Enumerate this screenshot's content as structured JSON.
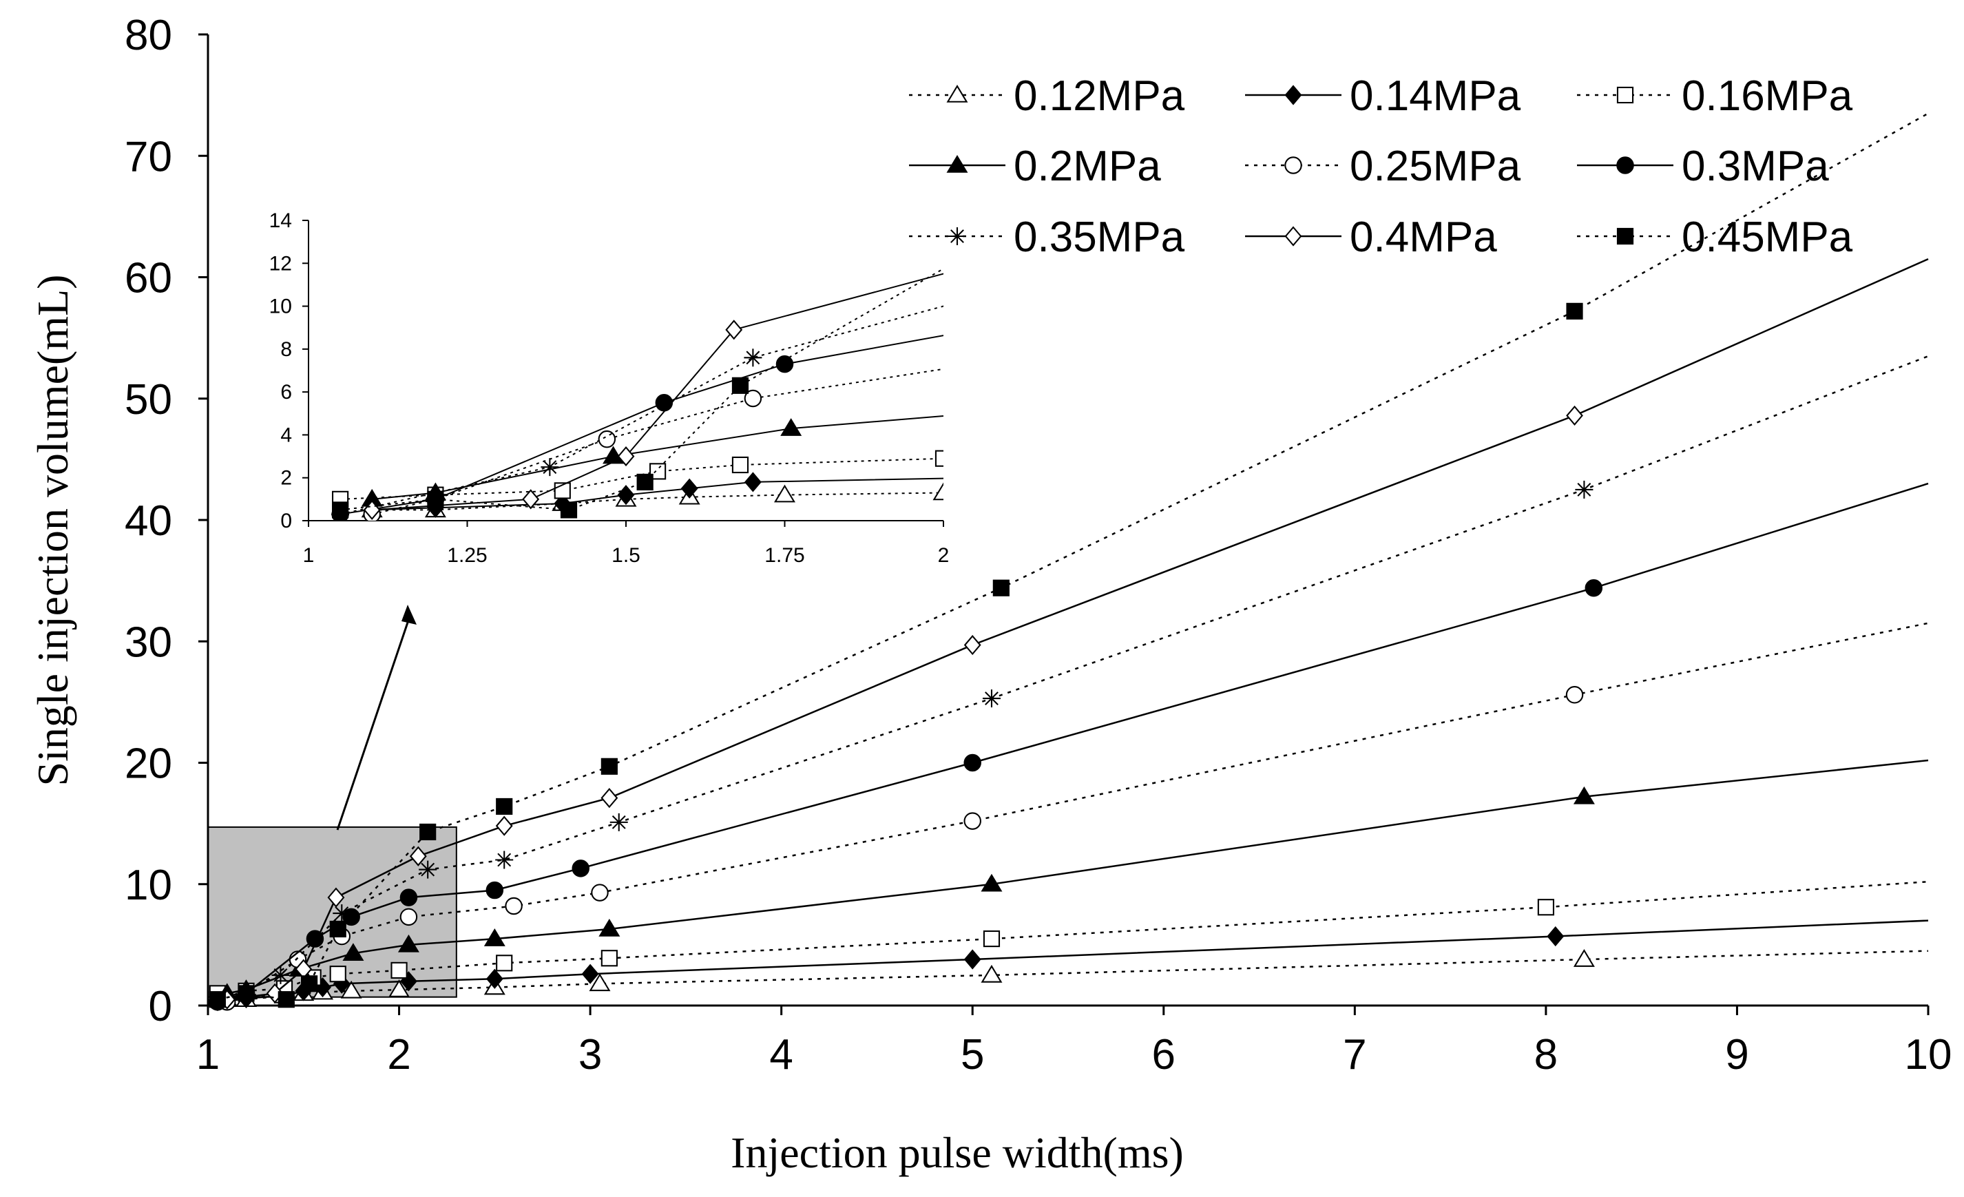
{
  "chart_data": {
    "type": "line",
    "xlabel": "Injection pulse width(ms)",
    "ylabel": "Single injection volume(mL)",
    "xlim": [
      1,
      10
    ],
    "ylim": [
      0,
      80
    ],
    "xticks": [
      "1",
      "2",
      "3",
      "4",
      "5",
      "6",
      "7",
      "8",
      "9",
      "10"
    ],
    "yticks": [
      "0",
      "10",
      "20",
      "30",
      "40",
      "50",
      "60",
      "70",
      "80"
    ],
    "grid": false,
    "legend_position": "top-right",
    "series": [
      {
        "name": "0.12MPa",
        "marker": "triangle-open",
        "line": "dotted",
        "x": [
          1.1,
          1.2,
          1.4,
          1.5,
          1.6,
          1.75,
          2.0,
          2.5,
          3.05,
          5.1,
          8.2,
          10
        ],
        "y": [
          0.5,
          0.5,
          0.8,
          1.0,
          1.1,
          1.2,
          1.3,
          1.5,
          1.8,
          2.5,
          3.8,
          4.5
        ]
      },
      {
        "name": "0.14MPa",
        "marker": "diamond-filled",
        "line": "solid",
        "x": [
          1.1,
          1.2,
          1.4,
          1.5,
          1.6,
          1.7,
          2.05,
          2.5,
          3.0,
          5.0,
          8.05,
          10
        ],
        "y": [
          0.5,
          0.6,
          0.8,
          1.2,
          1.5,
          1.8,
          2.0,
          2.2,
          2.6,
          3.8,
          5.7,
          7.0
        ]
      },
      {
        "name": "0.16MPa",
        "marker": "square-open",
        "line": "dotted",
        "x": [
          1.05,
          1.2,
          1.4,
          1.55,
          1.68,
          2.0,
          2.55,
          3.1,
          5.1,
          8.0,
          10
        ],
        "y": [
          1.0,
          1.2,
          1.4,
          2.3,
          2.6,
          2.9,
          3.5,
          3.9,
          5.5,
          8.1,
          10.2
        ]
      },
      {
        "name": "0.2MPa",
        "marker": "triangle-filled",
        "line": "solid",
        "x": [
          1.1,
          1.2,
          1.48,
          1.76,
          2.05,
          2.5,
          3.1,
          5.1,
          8.2,
          10
        ],
        "y": [
          1.0,
          1.3,
          3.0,
          4.3,
          5.0,
          5.5,
          6.3,
          10.0,
          17.2,
          20.2
        ]
      },
      {
        "name": "0.25MPa",
        "marker": "circle-open",
        "line": "dotted",
        "x": [
          1.1,
          1.2,
          1.47,
          1.7,
          2.05,
          2.6,
          3.05,
          5.0,
          8.15,
          10
        ],
        "y": [
          0.3,
          1.0,
          3.8,
          5.7,
          7.3,
          8.2,
          9.3,
          15.2,
          25.6,
          31.5
        ]
      },
      {
        "name": "0.3MPa",
        "marker": "circle-filled",
        "line": "solid",
        "x": [
          1.05,
          1.2,
          1.56,
          1.75,
          2.05,
          2.5,
          2.95,
          5.0,
          8.25,
          10
        ],
        "y": [
          0.3,
          1.0,
          5.5,
          7.3,
          8.9,
          9.5,
          11.3,
          20.0,
          34.4,
          43.0
        ]
      },
      {
        "name": "0.35MPa",
        "marker": "asterisk",
        "line": "dotted",
        "x": [
          1.05,
          1.38,
          1.7,
          2.15,
          2.55,
          3.15,
          5.1,
          8.2,
          10
        ],
        "y": [
          0.3,
          2.5,
          7.6,
          11.2,
          12.0,
          15.1,
          25.3,
          42.5,
          53.5
        ]
      },
      {
        "name": "0.4MPa",
        "marker": "diamond-open",
        "line": "solid",
        "x": [
          1.1,
          1.35,
          1.5,
          1.67,
          2.1,
          2.55,
          3.1,
          5.0,
          8.15,
          10
        ],
        "y": [
          0.5,
          1.0,
          3.0,
          8.9,
          12.3,
          14.8,
          17.1,
          29.7,
          48.6,
          61.5
        ]
      },
      {
        "name": "0.45MPa",
        "marker": "square-filled",
        "line": "dotted",
        "x": [
          1.05,
          1.2,
          1.41,
          1.53,
          1.68,
          2.15,
          2.55,
          3.1,
          5.15,
          8.15,
          10
        ],
        "y": [
          0.5,
          1.0,
          0.5,
          1.8,
          6.3,
          14.3,
          16.4,
          19.7,
          34.4,
          57.2,
          73.5
        ]
      }
    ],
    "inset": {
      "xlim": [
        1,
        2
      ],
      "ylim": [
        0,
        14
      ],
      "xticks": [
        "1",
        "1.25",
        "1.5",
        "1.75",
        "2"
      ],
      "yticks": [
        "0",
        "2",
        "4",
        "6",
        "8",
        "10",
        "12",
        "14"
      ]
    }
  }
}
